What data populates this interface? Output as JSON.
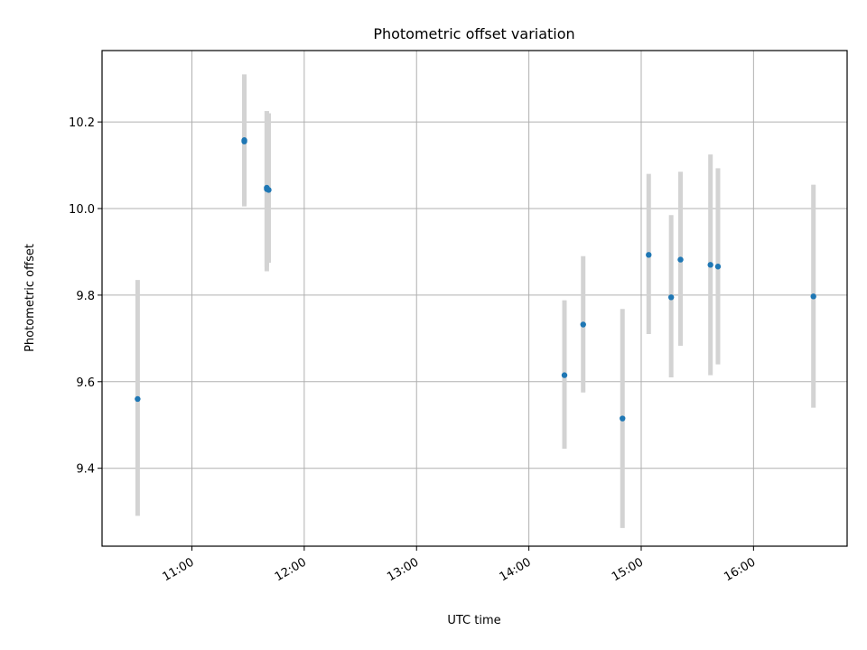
{
  "chart_data": {
    "type": "scatter",
    "title": "Photometric offset variation",
    "xlabel": "UTC time",
    "ylabel": "Photometric offset",
    "x_axis_kind": "time",
    "xlim": [
      "10:12",
      "16:50"
    ],
    "ylim": [
      9.22,
      10.365
    ],
    "xticks": [
      "11:00",
      "12:00",
      "13:00",
      "14:00",
      "15:00",
      "16:00"
    ],
    "yticks": [
      9.4,
      9.6,
      9.8,
      10.0,
      10.2
    ],
    "grid": true,
    "colors": {
      "point": "#1f77b4",
      "errorbar": "#d3d3d3",
      "grid": "#b0b0b0"
    },
    "points": [
      {
        "x": "10:31",
        "y": 9.56,
        "ylow": 9.29,
        "yhigh": 9.835
      },
      {
        "x": "11:28",
        "y": 10.155,
        "ylow": 10.005,
        "yhigh": 10.31
      },
      {
        "x": "11:28",
        "y": 10.158,
        "ylow": 10.01,
        "yhigh": 10.305
      },
      {
        "x": "11:40",
        "y": 10.045,
        "ylow": 9.865,
        "yhigh": 10.225
      },
      {
        "x": "11:40",
        "y": 10.048,
        "ylow": 9.855,
        "yhigh": 10.225
      },
      {
        "x": "11:41",
        "y": 10.043,
        "ylow": 9.875,
        "yhigh": 10.22
      },
      {
        "x": "14:19",
        "y": 9.615,
        "ylow": 9.445,
        "yhigh": 9.788
      },
      {
        "x": "14:29",
        "y": 9.732,
        "ylow": 9.575,
        "yhigh": 9.89
      },
      {
        "x": "14:50",
        "y": 9.515,
        "ylow": 9.262,
        "yhigh": 9.768
      },
      {
        "x": "15:04",
        "y": 9.893,
        "ylow": 9.71,
        "yhigh": 10.08
      },
      {
        "x": "15:16",
        "y": 9.795,
        "ylow": 9.61,
        "yhigh": 9.985
      },
      {
        "x": "15:21",
        "y": 9.882,
        "ylow": 9.683,
        "yhigh": 10.085
      },
      {
        "x": "15:37",
        "y": 9.87,
        "ylow": 9.615,
        "yhigh": 10.125
      },
      {
        "x": "15:41",
        "y": 9.866,
        "ylow": 9.64,
        "yhigh": 10.093
      },
      {
        "x": "16:32",
        "y": 9.797,
        "ylow": 9.54,
        "yhigh": 10.055
      }
    ]
  }
}
